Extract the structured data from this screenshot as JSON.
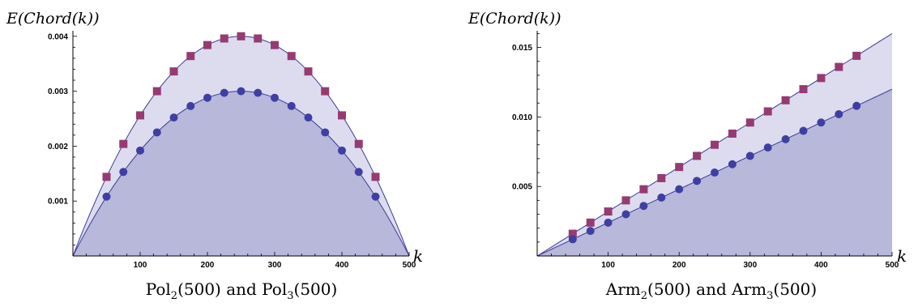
{
  "chart_data": [
    {
      "type": "area",
      "title": "Pol₂(500) and Pol₃(500)",
      "title_parts": {
        "name": "Pol",
        "sub1": "2",
        "mid": "(500) and Pol",
        "sub2": "3",
        "tail": "(500)"
      },
      "xlabel": "k",
      "ylabel": "E(Chord(k))",
      "xlim": [
        0,
        500
      ],
      "ylim": [
        0,
        0.0041
      ],
      "xticks": [
        100,
        200,
        300,
        400,
        500
      ],
      "xtick_labels": [
        "100",
        "200",
        "300",
        "400",
        "500"
      ],
      "yticks": [
        0.001,
        0.002,
        0.003,
        0.004
      ],
      "ytick_labels": [
        "0.001",
        "0.002",
        "0.003",
        "0.004"
      ],
      "grid": false,
      "colors": {
        "upper_fill": "#dcdcee",
        "lower_fill": "#b7b8da",
        "curve": "#3a3a9a",
        "square": "#963b72",
        "circle": "#3f3fa3"
      },
      "series": [
        {
          "marker": "square",
          "curve": "4*0.004*k*(500-k)/500^2",
          "x": [
            50,
            75,
            100,
            125,
            150,
            175,
            200,
            225,
            250,
            275,
            300,
            325,
            350,
            375,
            400,
            425,
            450
          ],
          "y": [
            0.00144,
            0.00204,
            0.00256,
            0.003,
            0.00336,
            0.00364,
            0.00384,
            0.00396,
            0.004,
            0.00396,
            0.00384,
            0.00364,
            0.00336,
            0.003,
            0.00256,
            0.00204,
            0.00144
          ]
        },
        {
          "marker": "circle",
          "curve": "4*0.003*k*(500-k)/500^2",
          "x": [
            50,
            75,
            100,
            125,
            150,
            175,
            200,
            225,
            250,
            275,
            300,
            325,
            350,
            375,
            400,
            425,
            450
          ],
          "y": [
            0.00108,
            0.00153,
            0.00192,
            0.00225,
            0.00252,
            0.00273,
            0.00288,
            0.00297,
            0.003,
            0.00297,
            0.00288,
            0.00273,
            0.00252,
            0.00225,
            0.00192,
            0.00153,
            0.00108
          ]
        }
      ]
    },
    {
      "type": "area",
      "title": "Arm₂(500) and Arm₃(500)",
      "title_parts": {
        "name": "Arm",
        "sub1": "2",
        "mid": "(500) and Arm",
        "sub2": "3",
        "tail": "(500)"
      },
      "xlabel": "k",
      "ylabel": "E(Chord(k))",
      "xlim": [
        0,
        500
      ],
      "ylim": [
        0,
        0.0162
      ],
      "xticks": [
        100,
        200,
        300,
        400,
        500
      ],
      "xtick_labels": [
        "100",
        "200",
        "300",
        "400",
        "500"
      ],
      "yticks": [
        0.005,
        0.01,
        0.015
      ],
      "ytick_labels": [
        "0.005",
        "0.010",
        "0.015"
      ],
      "grid": false,
      "colors": {
        "upper_fill": "#dcdcee",
        "lower_fill": "#b7b8da",
        "curve": "#3a3a9a",
        "square": "#963b72",
        "circle": "#3f3fa3"
      },
      "series": [
        {
          "marker": "square",
          "curve": "0.000032*k",
          "x": [
            50,
            75,
            100,
            125,
            150,
            175,
            200,
            225,
            250,
            275,
            300,
            325,
            350,
            375,
            400,
            425,
            450
          ],
          "y": [
            0.0016,
            0.0024,
            0.0032,
            0.004,
            0.0048,
            0.0056,
            0.0064,
            0.0072,
            0.008,
            0.0088,
            0.0096,
            0.0104,
            0.0112,
            0.012,
            0.0128,
            0.0136,
            0.0144
          ]
        },
        {
          "marker": "circle",
          "curve": "0.000024*k",
          "x": [
            50,
            75,
            100,
            125,
            150,
            175,
            200,
            225,
            250,
            275,
            300,
            325,
            350,
            375,
            400,
            425,
            450
          ],
          "y": [
            0.0012,
            0.0018,
            0.0024,
            0.003,
            0.0036,
            0.0042,
            0.0048,
            0.0054,
            0.006,
            0.0066,
            0.0072,
            0.0078,
            0.0084,
            0.009,
            0.0096,
            0.0102,
            0.0108
          ]
        }
      ]
    }
  ]
}
